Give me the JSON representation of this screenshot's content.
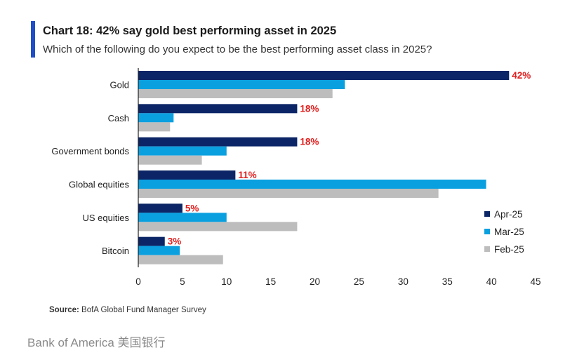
{
  "header": {
    "title": "Chart 18: 42% say gold best performing asset in 2025",
    "subtitle": "Which of the following do you expect to be the best performing asset class in 2025?",
    "accent_color": "#1f4ec7"
  },
  "chart_data": {
    "type": "bar",
    "orientation": "horizontal",
    "categories": [
      "Gold",
      "Cash",
      "Government bonds",
      "Global equities",
      "US equities",
      "Bitcoin"
    ],
    "series": [
      {
        "name": "Apr-25",
        "color": "#0b2566",
        "values": [
          42,
          18,
          18,
          11,
          5,
          3
        ]
      },
      {
        "name": "Mar-25",
        "color": "#0aa0e0",
        "values": [
          23.4,
          4,
          10,
          39.4,
          10,
          4.7
        ]
      },
      {
        "name": "Feb-25",
        "color": "#bdbdbd",
        "values": [
          22,
          3.6,
          7.2,
          34,
          18,
          9.6
        ]
      }
    ],
    "data_labels": {
      "series": "Apr-25",
      "texts": [
        "42%",
        "18%",
        "18%",
        "11%",
        "5%",
        "3%"
      ],
      "color": "#e0201f"
    },
    "xlim": [
      0,
      45
    ],
    "xticks": [
      "0",
      "5",
      "10",
      "15",
      "20",
      "25",
      "30",
      "35",
      "40",
      "45"
    ],
    "xtick_values": [
      0,
      5,
      10,
      15,
      20,
      25,
      30,
      35,
      40,
      45
    ],
    "grid": false,
    "legend": "bottom-right"
  },
  "source": {
    "label": "Source:",
    "text": " BofA Global Fund Manager Survey"
  },
  "brand": {
    "text": "Bank of America  美国银行"
  }
}
